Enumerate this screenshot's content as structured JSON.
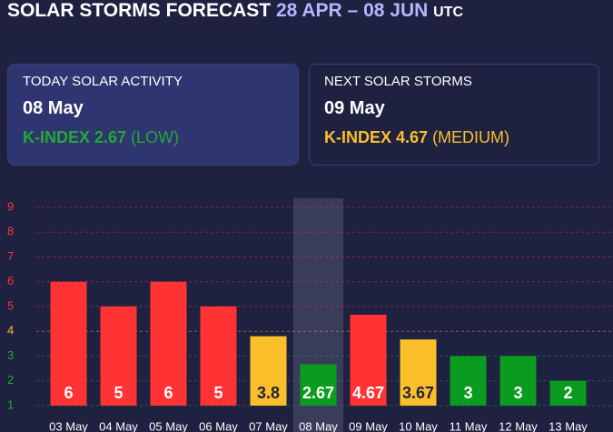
{
  "header": {
    "title": "SOLAR STORMS FORECAST",
    "range": "28 APR – 08 JUN",
    "zone": "UTC"
  },
  "cards": [
    {
      "label": "TODAY SOLAR ACTIVITY",
      "date": "08 May",
      "kindex": "K-INDEX 2.67",
      "level": "(LOW)"
    },
    {
      "label": "NEXT SOLAR STORMS",
      "date": "09 May",
      "kindex": "K-INDEX 4.67",
      "level": "(MEDIUM)"
    }
  ],
  "chart_data": {
    "type": "bar",
    "categories": [
      "03 May",
      "04 May",
      "05 May",
      "06 May",
      "07 May",
      "08 May",
      "09 May",
      "10 May",
      "11 May",
      "12 May",
      "13 May"
    ],
    "values": [
      6,
      5,
      6,
      5,
      3.8,
      2.67,
      4.67,
      3.67,
      3,
      3,
      2
    ],
    "colors": [
      "#ff3333",
      "#ff3333",
      "#ff3333",
      "#ff3333",
      "#fbbf2a",
      "#0b9b1e",
      "#ff3333",
      "#fbbf2a",
      "#0b9b1e",
      "#0b9b1e",
      "#0b9b1e"
    ],
    "label_colors": [
      "#ffffff",
      "#ffffff",
      "#ffffff",
      "#ffffff",
      "#1f2140",
      "#ffffff",
      "#ffffff",
      "#1f2140",
      "#ffffff",
      "#ffffff",
      "#ffffff"
    ],
    "highlight_index": 5,
    "ylim": [
      1,
      9
    ],
    "yticks": [
      1,
      2,
      3,
      4,
      5,
      6,
      7,
      8,
      9
    ],
    "ytick_colors": [
      "#22a833",
      "#22a833",
      "#22a833",
      "#fbbf2a",
      "#ff3333",
      "#ff3333",
      "#ff3333",
      "#ff3333",
      "#ff3333"
    ],
    "grid": true
  }
}
